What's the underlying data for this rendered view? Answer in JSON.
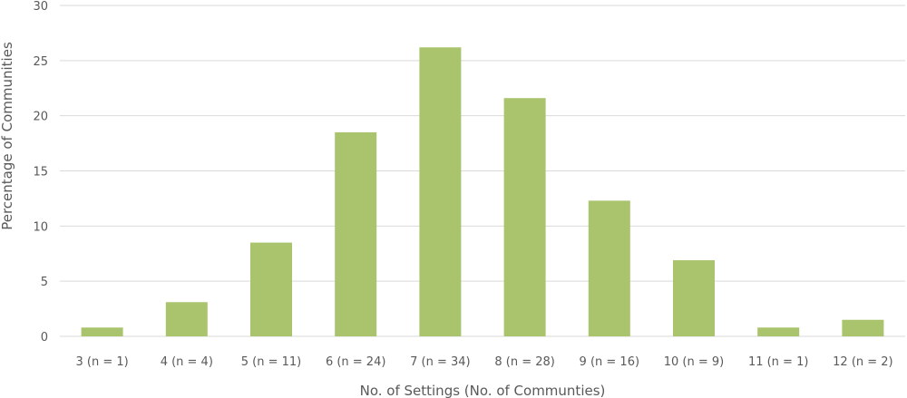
{
  "chart_data": {
    "type": "bar",
    "categories": [
      "3 (n = 1)",
      "4 (n = 4)",
      "5 (n = 11)",
      "6 (n = 24)",
      "7 (n = 34)",
      "8 (n = 28)",
      "9 (n = 16)",
      "10 (n = 9)",
      "11 (n = 1)",
      "12 (n = 2)"
    ],
    "values": [
      0.8,
      3.1,
      8.5,
      18.5,
      26.2,
      21.6,
      12.3,
      6.9,
      0.8,
      1.5
    ],
    "xlabel": "No. of Settings (No. of Communties)",
    "ylabel": "Percentage of Communities",
    "ylim": [
      0,
      30
    ],
    "yticks": [
      "0",
      "5",
      "10",
      "15",
      "20",
      "25",
      "30"
    ],
    "grid": true,
    "bar_color": "#a9c46c",
    "grid_color": "#d9d9d9",
    "text_color": "#595959"
  }
}
